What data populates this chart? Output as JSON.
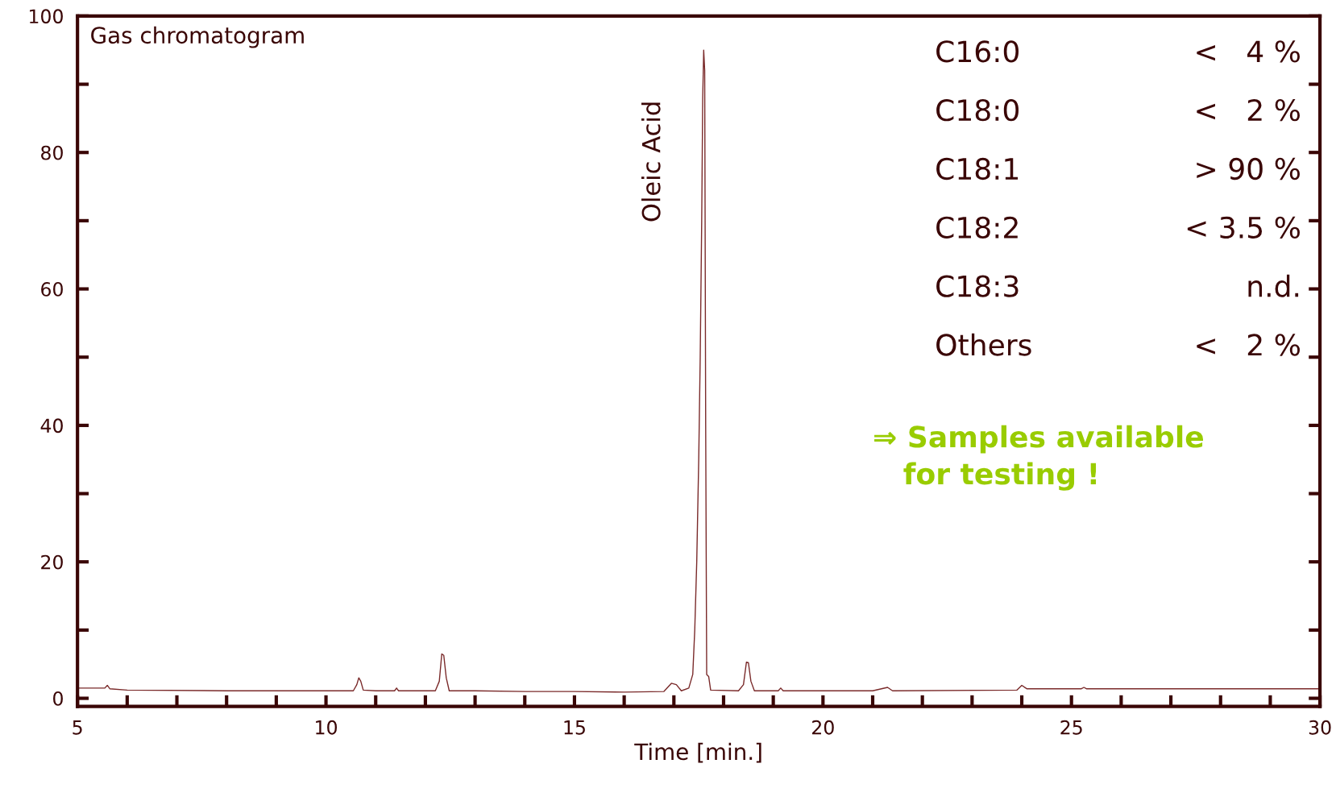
{
  "chart_data": {
    "type": "line",
    "title": "Gas chromatogram",
    "xlabel": "Time [min.]",
    "x": [
      5.0,
      5.55,
      5.6,
      5.65,
      6.0,
      8.0,
      10.0,
      10.55,
      10.62,
      10.66,
      10.7,
      10.75,
      11.0,
      11.38,
      11.42,
      11.46,
      12.2,
      12.28,
      12.33,
      12.37,
      12.42,
      12.48,
      13.0,
      14.0,
      15.0,
      16.0,
      16.8,
      16.95,
      17.05,
      17.15,
      17.3,
      17.38,
      17.42,
      17.46,
      17.5,
      17.53,
      17.56,
      17.58,
      17.6,
      17.62,
      17.64,
      17.66,
      17.7,
      17.74,
      18.3,
      18.4,
      18.46,
      18.5,
      18.55,
      18.62,
      19.1,
      19.15,
      19.2,
      21.0,
      21.3,
      21.4,
      23.9,
      24.0,
      24.1,
      25.2,
      25.25,
      25.3,
      30.0
    ],
    "series": [
      {
        "color": "#7a2a2a",
        "values": [
          1.5,
          1.5,
          1.9,
          1.4,
          1.2,
          1.1,
          1.1,
          1.1,
          2.0,
          3.0,
          2.5,
          1.2,
          1.1,
          1.1,
          1.5,
          1.1,
          1.1,
          2.5,
          6.5,
          6.3,
          3.0,
          1.1,
          1.1,
          1.0,
          1.0,
          0.9,
          1.0,
          2.2,
          2.0,
          1.1,
          1.5,
          3.5,
          10,
          20,
          35,
          50,
          70,
          88,
          95,
          92,
          40,
          3.5,
          3.2,
          1.2,
          1.1,
          2.0,
          5.3,
          5.2,
          2.5,
          1.1,
          1.1,
          1.5,
          1.1,
          1.1,
          1.6,
          1.1,
          1.2,
          1.9,
          1.4,
          1.4,
          1.6,
          1.4,
          1.4
        ]
      }
    ],
    "xlim": [
      5,
      30
    ],
    "ylim": [
      -1.2,
      100
    ],
    "xticks": [
      5,
      {
        "value": 6,
        "label": null
      },
      {
        "value": 7,
        "label": null
      },
      {
        "value": 8,
        "label": null
      },
      {
        "value": 9,
        "label": null
      },
      10,
      {
        "value": 11,
        "label": null
      },
      {
        "value": 12,
        "label": null
      },
      {
        "value": 13,
        "label": null
      },
      {
        "value": 14,
        "label": null
      },
      15,
      {
        "value": 16,
        "label": null
      },
      {
        "value": 17,
        "label": null
      },
      {
        "value": 18,
        "label": null
      },
      {
        "value": 19,
        "label": null
      },
      20,
      {
        "value": 21,
        "label": null
      },
      {
        "value": 22,
        "label": null
      },
      {
        "value": 23,
        "label": null
      },
      {
        "value": 24,
        "label": null
      },
      25,
      {
        "value": 26,
        "label": null
      },
      {
        "value": 27,
        "label": null
      },
      {
        "value": 28,
        "label": null
      },
      {
        "value": 29,
        "label": null
      },
      30
    ],
    "yticks": [
      0,
      {
        "value": 10,
        "label": null
      },
      20,
      {
        "value": 30,
        "label": null
      },
      40,
      {
        "value": 50,
        "label": null
      },
      60,
      {
        "value": 70,
        "label": null
      },
      80,
      {
        "value": 90,
        "label": null
      },
      100
    ],
    "grid": false,
    "legend": false,
    "marker": "none",
    "line_style": "solid",
    "annotations": [
      {
        "text": "Oleic Acid",
        "x": 17.6,
        "y": 95
      },
      "C16:0",
      "<   4 %",
      "C18:0",
      "<   2 %",
      "C18:1",
      "> 90 %",
      "C18:2",
      "< 3.5 %",
      "C18:3",
      "n.d.",
      "Others",
      "<   2 %",
      "⇒ Samples available\n   for testing !"
    ]
  }
}
